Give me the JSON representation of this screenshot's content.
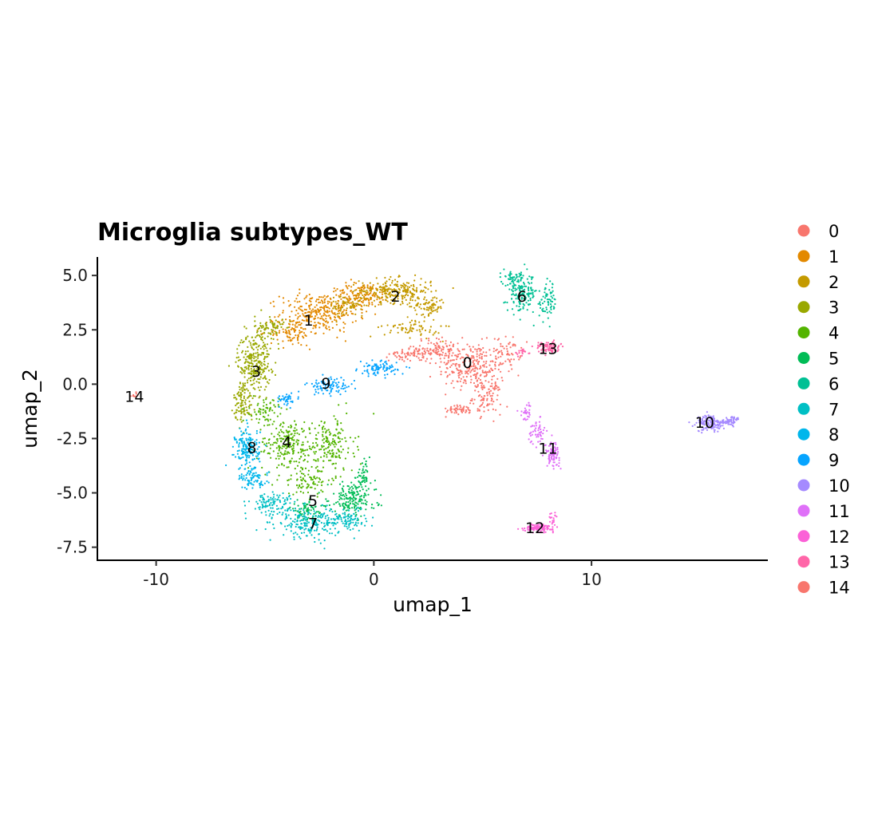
{
  "chart_data": {
    "type": "scatter",
    "title": "Microglia subtypes_WT",
    "xlabel": "umap_1",
    "ylabel": "umap_2",
    "xlim": [
      -12.7,
      18.1
    ],
    "ylim": [
      -8.1,
      5.85
    ],
    "xticks": [
      -10,
      0,
      10
    ],
    "xtick_labels": [
      "-10",
      "0",
      "10"
    ],
    "yticks": [
      5.0,
      2.5,
      0.0,
      -2.5,
      -5.0,
      -7.5
    ],
    "ytick_labels": [
      "5.0",
      "2.5",
      "0.0",
      "-2.5",
      "-5.0",
      "-7.5"
    ],
    "grid": false,
    "legend_position": "right",
    "series": [
      {
        "name": "0",
        "color": "#F8766D",
        "label_x": 4.3,
        "label_y": 1.0,
        "blobs": [
          [
            4.5,
            0.8,
            1.4,
            1.0,
            260
          ],
          [
            3.0,
            1.6,
            1.0,
            0.5,
            110
          ],
          [
            5.2,
            -0.6,
            0.6,
            0.7,
            90
          ],
          [
            4.0,
            -1.2,
            0.8,
            0.2,
            50
          ],
          [
            6.2,
            1.5,
            0.5,
            0.6,
            50
          ],
          [
            1.6,
            1.4,
            0.8,
            0.3,
            60
          ]
        ]
      },
      {
        "name": "1",
        "color": "#E38900",
        "label_x": -3.0,
        "label_y": 2.95,
        "blobs": [
          [
            -2.5,
            3.3,
            1.6,
            0.8,
            280
          ],
          [
            -3.8,
            2.4,
            0.9,
            0.6,
            100
          ],
          [
            -0.5,
            4.1,
            1.2,
            0.5,
            140
          ]
        ]
      },
      {
        "name": "2",
        "color": "#C49A00",
        "label_x": 1.0,
        "label_y": 4.05,
        "blobs": [
          [
            1.0,
            4.3,
            1.5,
            0.5,
            240
          ],
          [
            2.5,
            3.6,
            0.7,
            0.4,
            80
          ],
          [
            1.8,
            2.6,
            1.2,
            0.4,
            70
          ],
          [
            -1.2,
            3.6,
            0.8,
            0.5,
            70
          ]
        ]
      },
      {
        "name": "3",
        "color": "#99A800",
        "label_x": -5.4,
        "label_y": 0.6,
        "blobs": [
          [
            -5.5,
            1.0,
            0.7,
            1.2,
            260
          ],
          [
            -4.8,
            2.5,
            0.6,
            0.6,
            80
          ],
          [
            -6.0,
            -0.8,
            0.4,
            0.9,
            100
          ]
        ]
      },
      {
        "name": "4",
        "color": "#53B400",
        "label_x": -4.0,
        "label_y": -2.65,
        "blobs": [
          [
            -4.0,
            -2.8,
            1.2,
            1.1,
            220
          ],
          [
            -2.0,
            -2.8,
            1.0,
            1.2,
            170
          ],
          [
            -5.0,
            -1.2,
            0.6,
            0.5,
            60
          ],
          [
            -3.0,
            -4.5,
            1.2,
            0.6,
            80
          ]
        ]
      },
      {
        "name": "5",
        "color": "#00BC56",
        "label_x": -2.8,
        "label_y": -5.35,
        "blobs": [
          [
            -1.0,
            -5.3,
            1.0,
            0.7,
            170
          ],
          [
            -3.0,
            -5.8,
            0.8,
            0.4,
            70
          ],
          [
            -0.5,
            -4.3,
            0.3,
            0.6,
            50
          ]
        ]
      },
      {
        "name": "6",
        "color": "#00C094",
        "label_x": 6.8,
        "label_y": 4.05,
        "blobs": [
          [
            6.8,
            4.2,
            0.6,
            0.8,
            160
          ],
          [
            8.0,
            3.8,
            0.4,
            0.8,
            70
          ],
          [
            6.3,
            4.9,
            0.3,
            0.3,
            30
          ]
        ]
      },
      {
        "name": "7",
        "color": "#00BFC4",
        "label_x": -2.8,
        "label_y": -6.4,
        "blobs": [
          [
            -3.0,
            -6.4,
            1.3,
            0.6,
            200
          ],
          [
            -4.7,
            -5.5,
            0.9,
            0.5,
            110
          ],
          [
            -1.2,
            -6.2,
            0.8,
            0.5,
            90
          ]
        ]
      },
      {
        "name": "8",
        "color": "#00B6EB",
        "label_x": -5.6,
        "label_y": -2.9,
        "blobs": [
          [
            -5.8,
            -3.0,
            0.5,
            0.9,
            180
          ],
          [
            -5.5,
            -4.4,
            0.6,
            0.4,
            70
          ]
        ]
      },
      {
        "name": "9",
        "color": "#06A4FF",
        "label_x": -2.2,
        "label_y": 0.05,
        "blobs": [
          [
            -2.0,
            -0.1,
            1.0,
            0.35,
            90
          ],
          [
            0.2,
            0.7,
            0.8,
            0.3,
            90
          ],
          [
            -4.0,
            -0.7,
            0.5,
            0.25,
            40
          ]
        ]
      },
      {
        "name": "10",
        "color": "#A58AFF",
        "label_x": 15.2,
        "label_y": -1.75,
        "blobs": [
          [
            15.5,
            -1.8,
            0.6,
            0.35,
            140
          ],
          [
            16.4,
            -1.7,
            0.4,
            0.2,
            50
          ]
        ]
      },
      {
        "name": "11",
        "color": "#DF70F8",
        "label_x": 8.0,
        "label_y": -2.95,
        "blobs": [
          [
            8.2,
            -3.2,
            0.3,
            0.5,
            90
          ],
          [
            7.5,
            -2.2,
            0.35,
            0.5,
            50
          ],
          [
            7.0,
            -1.3,
            0.25,
            0.4,
            30
          ]
        ]
      },
      {
        "name": "12",
        "color": "#FB61D7",
        "label_x": 7.4,
        "label_y": -6.6,
        "blobs": [
          [
            7.6,
            -6.6,
            0.6,
            0.15,
            120
          ],
          [
            8.2,
            -6.2,
            0.2,
            0.25,
            20
          ]
        ]
      },
      {
        "name": "13",
        "color": "#FF66A8",
        "label_x": 8.0,
        "label_y": 1.65,
        "blobs": [
          [
            8.0,
            1.7,
            0.5,
            0.25,
            80
          ],
          [
            6.8,
            1.5,
            0.3,
            0.2,
            20
          ]
        ]
      },
      {
        "name": "14",
        "color": "#F8766D",
        "label_x": -11.0,
        "label_y": -0.55,
        "blobs": [
          [
            -11.0,
            -0.55,
            0.2,
            0.1,
            10
          ]
        ]
      }
    ]
  }
}
